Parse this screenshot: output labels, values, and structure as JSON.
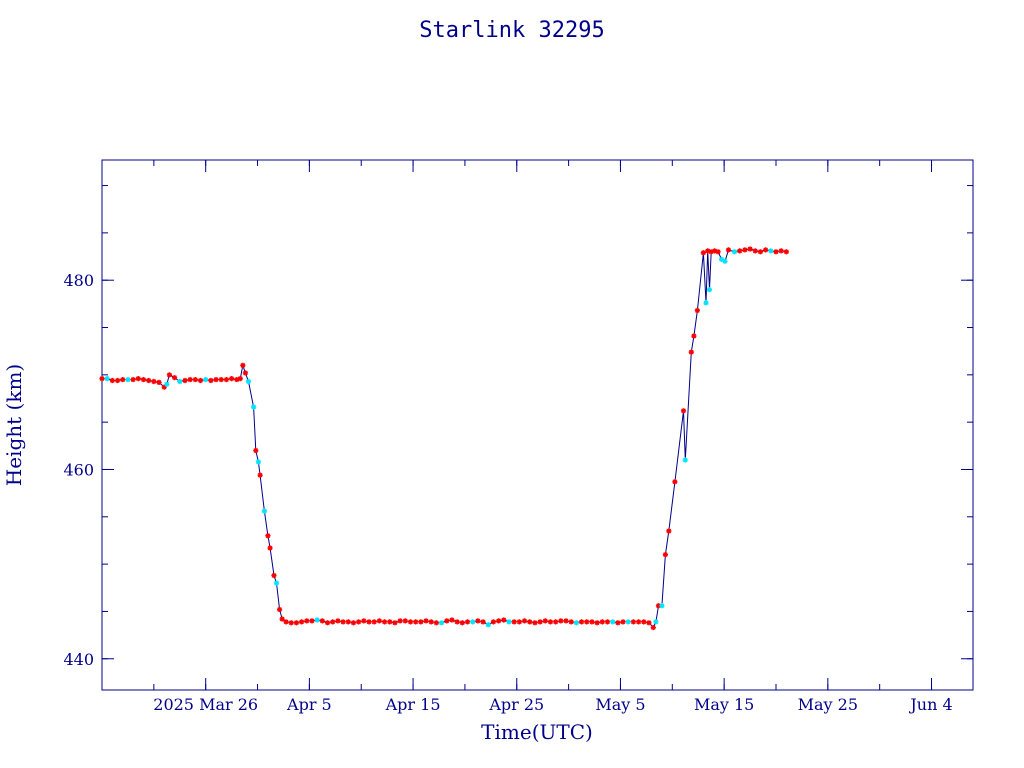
{
  "chart_data": {
    "type": "line",
    "title": "Starlink 32295",
    "xlabel": "Time(UTC)",
    "ylabel": "Height (km)",
    "x_axis": {
      "type": "date",
      "range": [
        "2025-03-16",
        "2025-06-08"
      ],
      "ticks": [
        {
          "date": "2025-03-26",
          "label": "2025 Mar 26"
        },
        {
          "date": "2025-04-05",
          "label": "Apr  5"
        },
        {
          "date": "2025-04-15",
          "label": "Apr 15"
        },
        {
          "date": "2025-04-25",
          "label": "Apr 25"
        },
        {
          "date": "2025-05-05",
          "label": "May  5"
        },
        {
          "date": "2025-05-15",
          "label": "May 15"
        },
        {
          "date": "2025-05-25",
          "label": "May 25"
        },
        {
          "date": "2025-06-04",
          "label": "Jun  4"
        }
      ]
    },
    "y_axis": {
      "range": [
        436.7,
        492.7
      ],
      "ticks": [
        {
          "value": 440,
          "label": "440"
        },
        {
          "value": 460,
          "label": "460"
        },
        {
          "value": 480,
          "label": "480"
        }
      ],
      "minor_step": 5
    },
    "grid": false,
    "colors": {
      "frame": "#00008b",
      "line": "#00008b",
      "marker_primary": "#ff0000",
      "marker_secondary": "#00e5ff"
    },
    "series": [
      {
        "marker": "star",
        "points": [
          {
            "x": "2025-03-16 00:00",
            "y": 469.6,
            "c": "primary"
          },
          {
            "x": "2025-03-16 12:00",
            "y": 469.6,
            "c": "secondary"
          },
          {
            "x": "2025-03-17 00:00",
            "y": 469.4,
            "c": "primary"
          },
          {
            "x": "2025-03-17 12:00",
            "y": 469.4,
            "c": "primary"
          },
          {
            "x": "2025-03-18 00:00",
            "y": 469.5,
            "c": "primary"
          },
          {
            "x": "2025-03-18 12:00",
            "y": 469.5,
            "c": "secondary"
          },
          {
            "x": "2025-03-19 00:00",
            "y": 469.5,
            "c": "primary"
          },
          {
            "x": "2025-03-19 12:00",
            "y": 469.6,
            "c": "primary"
          },
          {
            "x": "2025-03-20 00:00",
            "y": 469.5,
            "c": "primary"
          },
          {
            "x": "2025-03-20 12:00",
            "y": 469.4,
            "c": "primary"
          },
          {
            "x": "2025-03-21 00:00",
            "y": 469.3,
            "c": "primary"
          },
          {
            "x": "2025-03-21 12:00",
            "y": 469.2,
            "c": "primary"
          },
          {
            "x": "2025-03-22 00:00",
            "y": 468.7,
            "c": "primary"
          },
          {
            "x": "2025-03-22 06:00",
            "y": 469.0,
            "c": "secondary"
          },
          {
            "x": "2025-03-22 12:00",
            "y": 470.0,
            "c": "primary"
          },
          {
            "x": "2025-03-23 00:00",
            "y": 469.7,
            "c": "primary"
          },
          {
            "x": "2025-03-23 12:00",
            "y": 469.3,
            "c": "secondary"
          },
          {
            "x": "2025-03-24 00:00",
            "y": 469.4,
            "c": "primary"
          },
          {
            "x": "2025-03-24 12:00",
            "y": 469.5,
            "c": "primary"
          },
          {
            "x": "2025-03-25 00:00",
            "y": 469.5,
            "c": "primary"
          },
          {
            "x": "2025-03-25 12:00",
            "y": 469.4,
            "c": "primary"
          },
          {
            "x": "2025-03-26 00:00",
            "y": 469.5,
            "c": "secondary"
          },
          {
            "x": "2025-03-26 12:00",
            "y": 469.4,
            "c": "primary"
          },
          {
            "x": "2025-03-27 00:00",
            "y": 469.5,
            "c": "primary"
          },
          {
            "x": "2025-03-27 12:00",
            "y": 469.5,
            "c": "primary"
          },
          {
            "x": "2025-03-28 00:00",
            "y": 469.5,
            "c": "primary"
          },
          {
            "x": "2025-03-28 12:00",
            "y": 469.6,
            "c": "primary"
          },
          {
            "x": "2025-03-29 00:00",
            "y": 469.5,
            "c": "primary"
          },
          {
            "x": "2025-03-29 08:00",
            "y": 469.6,
            "c": "primary"
          },
          {
            "x": "2025-03-29 14:00",
            "y": 471.0,
            "c": "primary"
          },
          {
            "x": "2025-03-29 20:00",
            "y": 470.2,
            "c": "primary"
          },
          {
            "x": "2025-03-30 03:00",
            "y": 469.3,
            "c": "secondary"
          },
          {
            "x": "2025-03-30 15:00",
            "y": 466.6,
            "c": "secondary"
          },
          {
            "x": "2025-03-30 20:00",
            "y": 462.0,
            "c": "primary"
          },
          {
            "x": "2025-03-31 02:00",
            "y": 460.8,
            "c": "secondary"
          },
          {
            "x": "2025-03-31 06:00",
            "y": 459.4,
            "c": "primary"
          },
          {
            "x": "2025-03-31 16:00",
            "y": 455.6,
            "c": "secondary"
          },
          {
            "x": "2025-04-01 00:00",
            "y": 453.0,
            "c": "primary"
          },
          {
            "x": "2025-04-01 05:00",
            "y": 451.7,
            "c": "primary"
          },
          {
            "x": "2025-04-01 14:00",
            "y": 448.8,
            "c": "primary"
          },
          {
            "x": "2025-04-01 20:00",
            "y": 448.0,
            "c": "secondary"
          },
          {
            "x": "2025-04-02 03:00",
            "y": 445.2,
            "c": "primary"
          },
          {
            "x": "2025-04-02 09:00",
            "y": 444.2,
            "c": "primary"
          },
          {
            "x": "2025-04-02 18:00",
            "y": 443.9,
            "c": "primary"
          },
          {
            "x": "2025-04-03 06:00",
            "y": 443.8,
            "c": "primary"
          },
          {
            "x": "2025-04-03 18:00",
            "y": 443.8,
            "c": "primary"
          },
          {
            "x": "2025-04-04 06:00",
            "y": 443.9,
            "c": "primary"
          },
          {
            "x": "2025-04-04 18:00",
            "y": 444.0,
            "c": "primary"
          },
          {
            "x": "2025-04-05 06:00",
            "y": 444.0,
            "c": "primary"
          },
          {
            "x": "2025-04-05 18:00",
            "y": 444.1,
            "c": "secondary"
          },
          {
            "x": "2025-04-06 06:00",
            "y": 444.0,
            "c": "primary"
          },
          {
            "x": "2025-04-06 18:00",
            "y": 443.8,
            "c": "primary"
          },
          {
            "x": "2025-04-07 06:00",
            "y": 443.9,
            "c": "primary"
          },
          {
            "x": "2025-04-07 18:00",
            "y": 444.0,
            "c": "primary"
          },
          {
            "x": "2025-04-08 06:00",
            "y": 443.9,
            "c": "primary"
          },
          {
            "x": "2025-04-08 18:00",
            "y": 443.9,
            "c": "primary"
          },
          {
            "x": "2025-04-09 06:00",
            "y": 443.8,
            "c": "primary"
          },
          {
            "x": "2025-04-09 18:00",
            "y": 443.9,
            "c": "primary"
          },
          {
            "x": "2025-04-10 06:00",
            "y": 444.0,
            "c": "primary"
          },
          {
            "x": "2025-04-10 18:00",
            "y": 443.9,
            "c": "primary"
          },
          {
            "x": "2025-04-11 06:00",
            "y": 443.9,
            "c": "primary"
          },
          {
            "x": "2025-04-11 18:00",
            "y": 444.0,
            "c": "primary"
          },
          {
            "x": "2025-04-12 06:00",
            "y": 443.9,
            "c": "primary"
          },
          {
            "x": "2025-04-12 18:00",
            "y": 443.9,
            "c": "primary"
          },
          {
            "x": "2025-04-13 06:00",
            "y": 443.8,
            "c": "primary"
          },
          {
            "x": "2025-04-13 18:00",
            "y": 444.0,
            "c": "primary"
          },
          {
            "x": "2025-04-14 06:00",
            "y": 444.0,
            "c": "primary"
          },
          {
            "x": "2025-04-14 18:00",
            "y": 443.9,
            "c": "primary"
          },
          {
            "x": "2025-04-15 06:00",
            "y": 443.9,
            "c": "primary"
          },
          {
            "x": "2025-04-15 18:00",
            "y": 443.9,
            "c": "primary"
          },
          {
            "x": "2025-04-16 06:00",
            "y": 444.0,
            "c": "primary"
          },
          {
            "x": "2025-04-16 18:00",
            "y": 443.9,
            "c": "primary"
          },
          {
            "x": "2025-04-17 06:00",
            "y": 443.8,
            "c": "primary"
          },
          {
            "x": "2025-04-17 18:00",
            "y": 443.8,
            "c": "secondary"
          },
          {
            "x": "2025-04-18 06:00",
            "y": 444.0,
            "c": "primary"
          },
          {
            "x": "2025-04-18 18:00",
            "y": 444.1,
            "c": "primary"
          },
          {
            "x": "2025-04-19 06:00",
            "y": 443.9,
            "c": "primary"
          },
          {
            "x": "2025-04-19 18:00",
            "y": 443.8,
            "c": "primary"
          },
          {
            "x": "2025-04-20 06:00",
            "y": 443.9,
            "c": "primary"
          },
          {
            "x": "2025-04-20 18:00",
            "y": 443.9,
            "c": "secondary"
          },
          {
            "x": "2025-04-21 06:00",
            "y": 444.0,
            "c": "primary"
          },
          {
            "x": "2025-04-21 18:00",
            "y": 443.9,
            "c": "primary"
          },
          {
            "x": "2025-04-22 06:00",
            "y": 443.6,
            "c": "secondary"
          },
          {
            "x": "2025-04-22 18:00",
            "y": 443.9,
            "c": "primary"
          },
          {
            "x": "2025-04-23 06:00",
            "y": 444.0,
            "c": "primary"
          },
          {
            "x": "2025-04-23 18:00",
            "y": 444.1,
            "c": "primary"
          },
          {
            "x": "2025-04-24 06:00",
            "y": 443.9,
            "c": "secondary"
          },
          {
            "x": "2025-04-24 18:00",
            "y": 443.9,
            "c": "primary"
          },
          {
            "x": "2025-04-25 06:00",
            "y": 443.9,
            "c": "primary"
          },
          {
            "x": "2025-04-25 18:00",
            "y": 444.0,
            "c": "primary"
          },
          {
            "x": "2025-04-26 06:00",
            "y": 443.9,
            "c": "primary"
          },
          {
            "x": "2025-04-26 18:00",
            "y": 443.8,
            "c": "primary"
          },
          {
            "x": "2025-04-27 06:00",
            "y": 443.9,
            "c": "primary"
          },
          {
            "x": "2025-04-27 18:00",
            "y": 444.0,
            "c": "primary"
          },
          {
            "x": "2025-04-28 06:00",
            "y": 443.9,
            "c": "primary"
          },
          {
            "x": "2025-04-28 18:00",
            "y": 443.9,
            "c": "primary"
          },
          {
            "x": "2025-04-29 06:00",
            "y": 444.0,
            "c": "primary"
          },
          {
            "x": "2025-04-29 18:00",
            "y": 444.0,
            "c": "primary"
          },
          {
            "x": "2025-04-30 06:00",
            "y": 443.9,
            "c": "primary"
          },
          {
            "x": "2025-04-30 18:00",
            "y": 443.8,
            "c": "secondary"
          },
          {
            "x": "2025-05-01 06:00",
            "y": 443.9,
            "c": "primary"
          },
          {
            "x": "2025-05-01 18:00",
            "y": 443.9,
            "c": "primary"
          },
          {
            "x": "2025-05-02 06:00",
            "y": 443.9,
            "c": "primary"
          },
          {
            "x": "2025-05-02 18:00",
            "y": 443.8,
            "c": "primary"
          },
          {
            "x": "2025-05-03 06:00",
            "y": 443.9,
            "c": "primary"
          },
          {
            "x": "2025-05-03 18:00",
            "y": 443.9,
            "c": "primary"
          },
          {
            "x": "2025-05-04 06:00",
            "y": 443.9,
            "c": "secondary"
          },
          {
            "x": "2025-05-04 18:00",
            "y": 443.8,
            "c": "primary"
          },
          {
            "x": "2025-05-05 06:00",
            "y": 443.9,
            "c": "primary"
          },
          {
            "x": "2025-05-05 18:00",
            "y": 443.9,
            "c": "secondary"
          },
          {
            "x": "2025-05-06 06:00",
            "y": 443.9,
            "c": "primary"
          },
          {
            "x": "2025-05-06 18:00",
            "y": 443.9,
            "c": "primary"
          },
          {
            "x": "2025-05-07 06:00",
            "y": 443.9,
            "c": "primary"
          },
          {
            "x": "2025-05-07 18:00",
            "y": 443.8,
            "c": "primary"
          },
          {
            "x": "2025-05-08 04:00",
            "y": 443.3,
            "c": "primary"
          },
          {
            "x": "2025-05-08 10:00",
            "y": 443.9,
            "c": "secondary"
          },
          {
            "x": "2025-05-08 16:00",
            "y": 445.6,
            "c": "primary"
          },
          {
            "x": "2025-05-09 00:00",
            "y": 445.6,
            "c": "secondary"
          },
          {
            "x": "2025-05-09 08:00",
            "y": 451.0,
            "c": "primary"
          },
          {
            "x": "2025-05-09 16:00",
            "y": 453.5,
            "c": "primary"
          },
          {
            "x": "2025-05-10 06:00",
            "y": 458.7,
            "c": "primary"
          },
          {
            "x": "2025-05-11 02:00",
            "y": 466.2,
            "c": "primary"
          },
          {
            "x": "2025-05-11 06:00",
            "y": 461.0,
            "c": "secondary"
          },
          {
            "x": "2025-05-11 20:00",
            "y": 472.4,
            "c": "primary"
          },
          {
            "x": "2025-05-12 02:00",
            "y": 474.1,
            "c": "primary"
          },
          {
            "x": "2025-05-12 10:00",
            "y": 476.8,
            "c": "primary"
          },
          {
            "x": "2025-05-13 00:00",
            "y": 482.9,
            "c": "primary"
          },
          {
            "x": "2025-05-13 06:00",
            "y": 477.6,
            "c": "secondary"
          },
          {
            "x": "2025-05-13 10:00",
            "y": 483.1,
            "c": "primary"
          },
          {
            "x": "2025-05-13 14:00",
            "y": 479.0,
            "c": "secondary"
          },
          {
            "x": "2025-05-13 18:00",
            "y": 483.0,
            "c": "primary"
          },
          {
            "x": "2025-05-14 02:00",
            "y": 483.1,
            "c": "primary"
          },
          {
            "x": "2025-05-14 10:00",
            "y": 483.0,
            "c": "primary"
          },
          {
            "x": "2025-05-14 18:00",
            "y": 482.2,
            "c": "secondary"
          },
          {
            "x": "2025-05-15 02:00",
            "y": 482.0,
            "c": "secondary"
          },
          {
            "x": "2025-05-15 10:00",
            "y": 483.2,
            "c": "primary"
          },
          {
            "x": "2025-05-16 00:00",
            "y": 483.0,
            "c": "secondary"
          },
          {
            "x": "2025-05-16 12:00",
            "y": 483.1,
            "c": "primary"
          },
          {
            "x": "2025-05-17 00:00",
            "y": 483.2,
            "c": "primary"
          },
          {
            "x": "2025-05-17 12:00",
            "y": 483.3,
            "c": "primary"
          },
          {
            "x": "2025-05-18 00:00",
            "y": 483.1,
            "c": "primary"
          },
          {
            "x": "2025-05-18 12:00",
            "y": 483.0,
            "c": "primary"
          },
          {
            "x": "2025-05-19 00:00",
            "y": 483.2,
            "c": "primary"
          },
          {
            "x": "2025-05-19 12:00",
            "y": 483.1,
            "c": "secondary"
          },
          {
            "x": "2025-05-20 00:00",
            "y": 483.0,
            "c": "primary"
          },
          {
            "x": "2025-05-20 12:00",
            "y": 483.1,
            "c": "primary"
          },
          {
            "x": "2025-05-21 00:00",
            "y": 483.0,
            "c": "primary"
          }
        ]
      }
    ]
  }
}
